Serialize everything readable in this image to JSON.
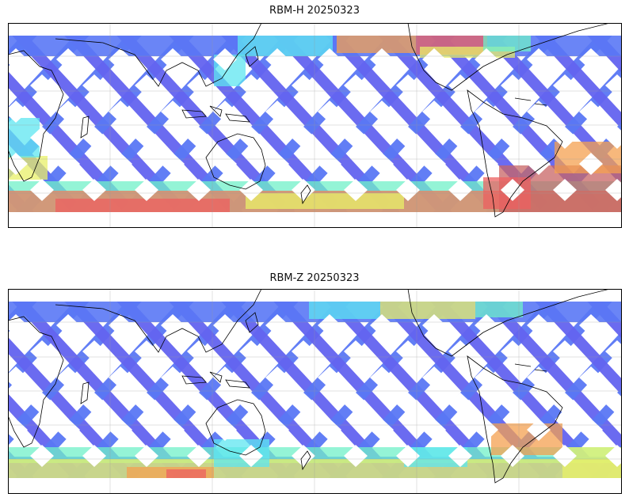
{
  "panels": [
    {
      "title": "RBM-H 20250323",
      "variable": "RBM-H",
      "date": "20250323"
    },
    {
      "title": "RBM-Z 20250323",
      "variable": "RBM-Z",
      "date": "20250323"
    }
  ],
  "map": {
    "projection": "equirectangular",
    "central_longitude": 180,
    "coastlines": true,
    "gridlines": true,
    "colormap": "jet",
    "swath_pattern": "crossing satellite tracks"
  }
}
